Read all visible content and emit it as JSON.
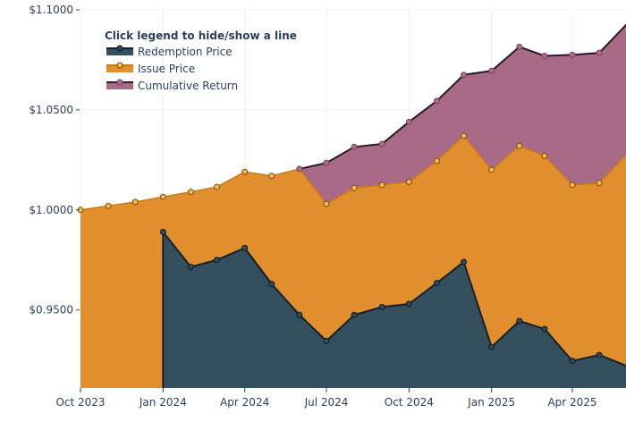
{
  "chart_data": {
    "type": "area",
    "title": "",
    "xlabel": "",
    "ylabel": "",
    "ylim": [
      0.911,
      1.1
    ],
    "xlim": [
      "2023-10-01",
      "2025-06-01"
    ],
    "grid": true,
    "legend": {
      "title": "Click legend to hide/show a line",
      "placement": "top-left"
    },
    "y_ticks": [
      {
        "value": 0.95,
        "label": "$0.9500"
      },
      {
        "value": 1.0,
        "label": "$1.0000"
      },
      {
        "value": 1.05,
        "label": "$1.0500"
      },
      {
        "value": 1.1,
        "label": "$1.1000"
      }
    ],
    "x_ticks": [
      {
        "value": "2023-10-01",
        "label": "Oct 2023"
      },
      {
        "value": "2024-01-01",
        "label": "Jan 2024"
      },
      {
        "value": "2024-04-01",
        "label": "Apr 2024"
      },
      {
        "value": "2024-07-01",
        "label": "Jul 2024"
      },
      {
        "value": "2024-10-01",
        "label": "Oct 2024"
      },
      {
        "value": "2025-01-01",
        "label": "Jan 2025"
      },
      {
        "value": "2025-04-01",
        "label": "Apr 2025"
      }
    ],
    "series": [
      {
        "name": "Redemption Price",
        "color": "#34505f",
        "line_color": "#17202a",
        "x": [
          "2024-01-01",
          "2024-02-01",
          "2024-03-01",
          "2024-04-01",
          "2024-05-01",
          "2024-06-01",
          "2024-07-01",
          "2024-08-01",
          "2024-09-01",
          "2024-10-01",
          "2024-11-01",
          "2024-12-01",
          "2025-01-01",
          "2025-02-01",
          "2025-03-01",
          "2025-04-01",
          "2025-05-01",
          "2025-06-01"
        ],
        "values": [
          0.989,
          0.9715,
          0.975,
          0.981,
          0.963,
          0.9475,
          0.9345,
          0.9475,
          0.9515,
          0.953,
          0.9635,
          0.974,
          0.9315,
          0.9445,
          0.9405,
          0.9245,
          0.9275,
          0.922
        ]
      },
      {
        "name": "Issue Price",
        "color": "#e18e2e",
        "line_color": "#c97a18",
        "x": [
          "2023-10-01",
          "2023-11-01",
          "2023-12-01",
          "2024-01-01",
          "2024-02-01",
          "2024-03-01",
          "2024-04-01",
          "2024-05-01",
          "2024-06-01",
          "2024-07-01",
          "2024-08-01",
          "2024-09-01",
          "2024-10-01",
          "2024-11-01",
          "2024-12-01",
          "2025-01-01",
          "2025-02-01",
          "2025-03-01",
          "2025-04-01",
          "2025-05-01",
          "2025-06-01"
        ],
        "values": [
          1.0,
          1.002,
          1.004,
          1.0065,
          1.009,
          1.0115,
          1.019,
          1.017,
          1.0205,
          1.003,
          1.011,
          1.0125,
          1.014,
          1.0245,
          1.037,
          1.02,
          1.032,
          1.027,
          1.0125,
          1.0135,
          1.028
        ]
      },
      {
        "name": "Cumulative Return",
        "color": "#a96a88",
        "line_color": "#2a1a24",
        "x": [
          "2024-06-01",
          "2024-07-01",
          "2024-08-01",
          "2024-09-01",
          "2024-10-01",
          "2024-11-01",
          "2024-12-01",
          "2025-01-01",
          "2025-02-01",
          "2025-03-01",
          "2025-04-01",
          "2025-05-01",
          "2025-06-01"
        ],
        "values": [
          1.0205,
          1.0235,
          1.0315,
          1.033,
          1.044,
          1.0545,
          1.0675,
          1.0695,
          1.0815,
          1.077,
          1.0775,
          1.0785,
          1.093
        ]
      }
    ]
  }
}
